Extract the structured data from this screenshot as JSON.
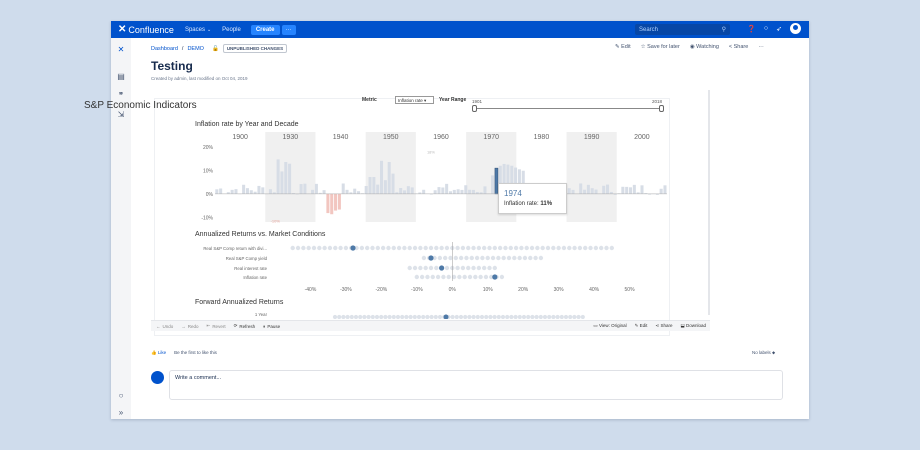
{
  "app": {
    "name": "Confluence",
    "nav": {
      "spaces": "Spaces",
      "people": "People",
      "create": "Create",
      "more": "···"
    },
    "search_placeholder": "Search"
  },
  "page": {
    "breadcrumb": {
      "dashboard": "Dashboard",
      "sep": "/",
      "space": "DEMO"
    },
    "status_badge": "UNPUBLISHED CHANGES",
    "title": "Testing",
    "byline": "Created by admin, last modified on Oct 04, 2019",
    "actions": {
      "edit": "Edit",
      "save_later": "Save for later",
      "watching": "Watching",
      "share": "Share",
      "more": "···"
    }
  },
  "viz": {
    "title": "S&P Economic Indicators",
    "metric_label": "Metric",
    "metric_value": "Inflation rate",
    "year_range_label": "Year Range",
    "year_min": "1901",
    "year_max": "2018",
    "section1_title": "Inflation rate by Year and Decade",
    "section2_title": "Annualized Returns vs. Market Conditions",
    "section3_title": "Forward Annualized Returns",
    "section3_row": "1 Year",
    "tooltip": {
      "year": "1974",
      "label": "Inflation rate: ",
      "value": "11%"
    }
  },
  "chart_data": [
    {
      "type": "bar",
      "title": "Inflation rate by Year and Decade",
      "decades": [
        "1900",
        "1930",
        "1940",
        "1950",
        "1960",
        "1970",
        "1980",
        "1990",
        "2000"
      ],
      "y_ticks": [
        "20%",
        "10%",
        "0%",
        "-10%"
      ],
      "ylim": [
        -12,
        23
      ],
      "annotations": [
        "18%",
        "-10%"
      ],
      "highlight_year": "1974",
      "highlight_value": 11
    },
    {
      "type": "scatter",
      "title": "Annualized Returns vs. Market Conditions",
      "rows": [
        "Real S&P Comp return with divi...",
        "Real S&P Comp yield",
        "Real interest rate",
        "Inflation rate"
      ],
      "x_ticks": [
        "-40%",
        "-30%",
        "-20%",
        "-10%",
        "0%",
        "10%",
        "20%",
        "30%",
        "40%",
        "50%"
      ],
      "xlim": [
        -50,
        60
      ]
    }
  ],
  "toolbar": {
    "undo": "Undo",
    "redo": "Redo",
    "revert": "Revert",
    "refresh": "Refresh",
    "pause": "Pause",
    "view": "View: Original",
    "edit": "Edit",
    "share": "Share",
    "download": "Download"
  },
  "footer": {
    "like": "Like",
    "like_prompt": "Be the first to like this",
    "labels": "No labels",
    "comment_placeholder": "Write a comment..."
  }
}
